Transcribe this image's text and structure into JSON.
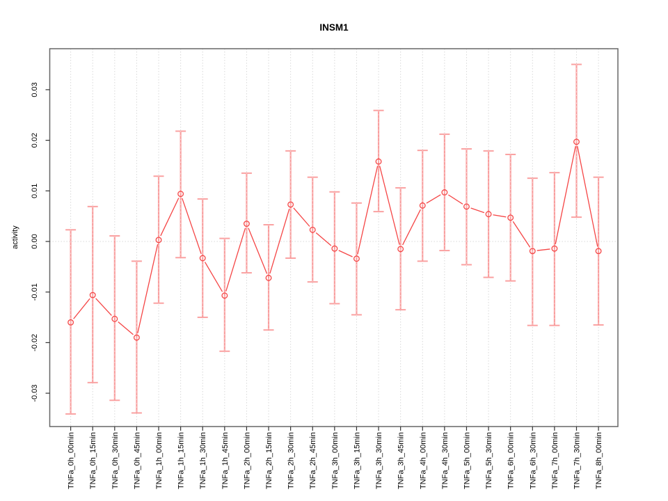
{
  "title": "INSM1",
  "chart_data": {
    "type": "line",
    "title": "INSM1",
    "xlabel": "",
    "ylabel": "activity",
    "categories": [
      "TNFa_0h_00min",
      "TNFa_0h_15min",
      "TNFa_0h_30min",
      "TNFa_0h_45min",
      "TNFa_1h_00min",
      "TNFa_1h_15min",
      "TNFa_1h_30min",
      "TNFa_1h_45min",
      "TNFa_2h_00min",
      "TNFa_2h_15min",
      "TNFa_2h_30min",
      "TNFa_2h_45min",
      "TNFa_3h_00min",
      "TNFa_3h_15min",
      "TNFa_3h_30min",
      "TNFa_3h_45min",
      "TNFa_4h_00min",
      "TNFa_4h_30min",
      "TNFa_5h_00min",
      "TNFa_5h_30min",
      "TNFa_6h_00min",
      "TNFa_6h_30min",
      "TNFa_7h_00min",
      "TNFa_7h_30min",
      "TNFa_8h_00min"
    ],
    "series": [
      {
        "name": "activity",
        "values": [
          -0.016,
          -0.0106,
          -0.0153,
          -0.019,
          0.0003,
          0.0094,
          -0.0033,
          -0.0107,
          0.0035,
          -0.0072,
          0.0073,
          0.0023,
          -0.0014,
          -0.0034,
          0.0158,
          -0.0015,
          0.0071,
          0.0097,
          0.0069,
          0.0054,
          0.0047,
          -0.0019,
          -0.0014,
          0.0197,
          -0.0019
        ],
        "err_high": [
          0.0023,
          0.0069,
          0.0011,
          -0.0039,
          0.0129,
          0.0218,
          0.0084,
          0.0006,
          0.0135,
          0.0033,
          0.0179,
          0.0127,
          0.0098,
          0.0076,
          0.0259,
          0.0106,
          0.018,
          0.0212,
          0.0183,
          0.0179,
          0.0172,
          0.0125,
          0.0136,
          0.035,
          0.0127
        ],
        "err_low": [
          -0.0341,
          -0.0279,
          -0.0314,
          -0.0339,
          -0.0122,
          -0.0032,
          -0.015,
          -0.0217,
          -0.0062,
          -0.0175,
          -0.0033,
          -0.008,
          -0.0123,
          -0.0145,
          0.0059,
          -0.0135,
          -0.0039,
          -0.0018,
          -0.0046,
          -0.0071,
          -0.0078,
          -0.0166,
          -0.0166,
          0.0048,
          -0.0165
        ]
      }
    ],
    "yticks": [
      -0.03,
      -0.02,
      -0.01,
      0,
      0.01,
      0.02,
      0.03
    ],
    "ytick_labels": [
      "-0.03",
      "-0.02",
      "-0.01",
      "0.00",
      "0.01",
      "0.02",
      "0.03"
    ],
    "ylim": [
      -0.0366,
      0.0381
    ],
    "grid": "vertical dotted gridlines at each category; dotted horizontal line at 0",
    "legend": "none",
    "colors": {
      "series": "#f54545",
      "error_bar": "#f98a8a",
      "grid": "#d8d8d8",
      "zero_line": "#d8d8d8",
      "axis_box": "#666666",
      "tick": "#333333",
      "text": "#000000",
      "background": "#ffffff"
    }
  }
}
